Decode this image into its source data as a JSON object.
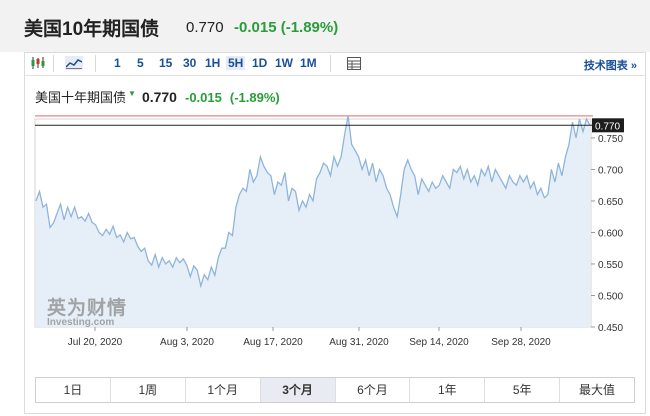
{
  "header": {
    "title": "美国10年期国债",
    "price": "0.770",
    "change": "-0.015 (-1.89%)"
  },
  "toolbar": {
    "intervals": [
      "1",
      "5",
      "15",
      "30",
      "1H",
      "5H",
      "1D",
      "1W",
      "1M"
    ],
    "active_interval": "5H",
    "tech_link": "技术图表 »",
    "icons": [
      "candlestick-icon",
      "area-chart-icon",
      "table-icon"
    ]
  },
  "legend": {
    "name": "美国十年期国债",
    "price": "0.770",
    "change": "-0.015",
    "change_pct": "(-1.89%)",
    "arrow": "▼"
  },
  "watermark": {
    "cn": "英为财情",
    "en": "Investing.com"
  },
  "tabs": [
    "1日",
    "1周",
    "1个月",
    "3个月",
    "6个月",
    "1年",
    "5年",
    "最大值"
  ],
  "active_tab": "3个月",
  "chart_data": {
    "type": "area",
    "x_tick_labels": [
      "Jul 20, 2020",
      "Aug 3, 2020",
      "Aug 17, 2020",
      "Aug 31, 2020",
      "Sep 14, 2020",
      "Sep 28, 2020"
    ],
    "ylim": [
      0.45,
      0.78
    ],
    "y_ticks": [
      0.45,
      0.5,
      0.55,
      0.6,
      0.65,
      0.7,
      0.75
    ],
    "y_tick_labels": [
      "0.450",
      "0.500",
      "0.550",
      "0.600",
      "0.650",
      "0.700",
      "0.750"
    ],
    "last_value": 0.77,
    "last_value_label": "0.770",
    "prev_close_line": 0.785,
    "values": [
      0.65,
      0.665,
      0.64,
      0.645,
      0.608,
      0.615,
      0.63,
      0.645,
      0.62,
      0.64,
      0.625,
      0.64,
      0.622,
      0.625,
      0.618,
      0.63,
      0.616,
      0.612,
      0.6,
      0.595,
      0.605,
      0.597,
      0.61,
      0.592,
      0.596,
      0.585,
      0.6,
      0.59,
      0.592,
      0.578,
      0.57,
      0.575,
      0.555,
      0.548,
      0.565,
      0.545,
      0.56,
      0.55,
      0.555,
      0.545,
      0.56,
      0.552,
      0.558,
      0.548,
      0.53,
      0.547,
      0.54,
      0.515,
      0.533,
      0.525,
      0.545,
      0.532,
      0.56,
      0.575,
      0.575,
      0.6,
      0.595,
      0.64,
      0.66,
      0.67,
      0.665,
      0.7,
      0.68,
      0.69,
      0.72,
      0.705,
      0.695,
      0.69,
      0.66,
      0.68,
      0.675,
      0.695,
      0.65,
      0.67,
      0.665,
      0.635,
      0.65,
      0.64,
      0.66,
      0.65,
      0.685,
      0.695,
      0.71,
      0.705,
      0.69,
      0.72,
      0.705,
      0.72,
      0.755,
      0.785,
      0.74,
      0.73,
      0.72,
      0.7,
      0.715,
      0.69,
      0.71,
      0.68,
      0.7,
      0.69,
      0.67,
      0.66,
      0.64,
      0.625,
      0.66,
      0.7,
      0.715,
      0.7,
      0.69,
      0.66,
      0.685,
      0.675,
      0.665,
      0.68,
      0.67,
      0.675,
      0.69,
      0.68,
      0.67,
      0.7,
      0.695,
      0.705,
      0.685,
      0.7,
      0.68,
      0.69,
      0.675,
      0.7,
      0.69,
      0.705,
      0.68,
      0.7,
      0.69,
      0.68,
      0.67,
      0.69,
      0.68,
      0.675,
      0.69,
      0.68,
      0.69,
      0.67,
      0.68,
      0.66,
      0.67,
      0.655,
      0.66,
      0.7,
      0.68,
      0.71,
      0.69,
      0.72,
      0.74,
      0.775,
      0.75,
      0.78,
      0.76,
      0.78,
      0.77
    ]
  }
}
